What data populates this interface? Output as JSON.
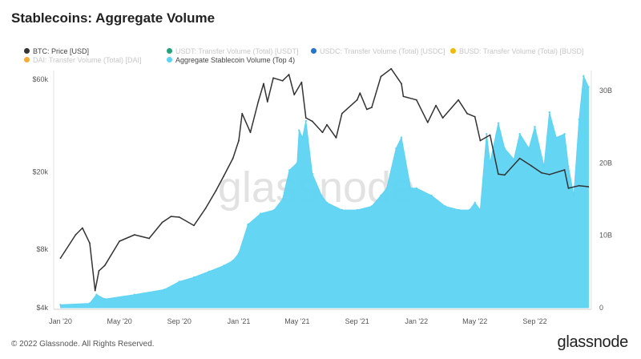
{
  "title": "Stablecoins: Aggregate Volume",
  "footer": "© 2022 Glassnode. All Rights Reserved.",
  "brand": "glassnode",
  "watermark": "glassnode",
  "colors": {
    "btc": "#333333",
    "usdt": "#26a17b",
    "usdc": "#2775ca",
    "busd": "#f0b90b",
    "dai": "#f5ac37",
    "aggregate": "#5dd3f3"
  },
  "legend": [
    {
      "name": "BTC: Price [USD]",
      "color": "#333333",
      "active": true
    },
    {
      "name": "USDT: Transfer Volume (Total) [USDT]",
      "color": "#26a17b",
      "active": false
    },
    {
      "name": "USDC: Transfer Volume (Total) [USDC]",
      "color": "#2775ca",
      "active": false
    },
    {
      "name": "BUSD: Transfer Volume (Total) [BUSD]",
      "color": "#f0b90b",
      "active": false
    },
    {
      "name": "DAI: Transfer Volume (Total) [DAI]",
      "color": "#f5ac37",
      "active": false
    },
    {
      "name": "Aggregate Stablecoin Volume (Top 4)",
      "color": "#5dd3f3",
      "active": true
    }
  ],
  "chart_data": {
    "type": "area",
    "title": "Stablecoins: Aggregate Volume",
    "x_ticks": [
      "Jan '20",
      "May '20",
      "Sep '20",
      "Jan '21",
      "May '21",
      "Sep '21",
      "Jan '22",
      "May '22",
      "Sep '22"
    ],
    "y_left_ticks": [
      "$4k",
      "$8k",
      "$20k",
      "$60k"
    ],
    "y_left_scale": "log",
    "y_left_range": [
      4000,
      60000
    ],
    "y_right_ticks": [
      "0",
      "10B",
      "20B",
      "30B"
    ],
    "y_right_range": [
      0,
      32000000000
    ],
    "grid": false,
    "legend_position": "top",
    "series": [
      {
        "name": "BTC: Price [USD]",
        "type": "line",
        "axis": "left",
        "x": [
          "2020-01-01",
          "2020-02-01",
          "2020-02-15",
          "2020-03-01",
          "2020-03-12",
          "2020-03-20",
          "2020-04-01",
          "2020-05-01",
          "2020-06-01",
          "2020-07-01",
          "2020-07-28",
          "2020-08-15",
          "2020-09-01",
          "2020-10-01",
          "2020-10-25",
          "2020-11-15",
          "2020-12-01",
          "2020-12-20",
          "2021-01-01",
          "2021-01-08",
          "2021-01-25",
          "2021-02-10",
          "2021-02-21",
          "2021-03-01",
          "2021-03-13",
          "2021-04-01",
          "2021-04-14",
          "2021-04-25",
          "2021-05-10",
          "2021-05-19",
          "2021-06-01",
          "2021-06-22",
          "2021-07-01",
          "2021-07-20",
          "2021-08-01",
          "2021-09-01",
          "2021-09-07",
          "2021-09-21",
          "2021-10-01",
          "2021-10-20",
          "2021-11-10",
          "2021-12-01",
          "2021-12-05",
          "2022-01-01",
          "2022-01-24",
          "2022-02-10",
          "2022-02-24",
          "2022-03-28",
          "2022-04-15",
          "2022-05-01",
          "2022-05-12",
          "2022-06-01",
          "2022-06-18",
          "2022-07-01",
          "2022-08-01",
          "2022-08-25",
          "2022-09-15",
          "2022-10-01",
          "2022-11-01",
          "2022-11-09",
          "2022-12-01",
          "2022-12-20"
        ],
        "values": [
          7200,
          9500,
          10300,
          8600,
          4900,
          6200,
          6600,
          8800,
          9500,
          9100,
          11000,
          11800,
          11700,
          10600,
          13000,
          16000,
          19000,
          23500,
          29000,
          40000,
          32000,
          46000,
          57000,
          46000,
          61000,
          59000,
          63500,
          50000,
          58000,
          38000,
          36500,
          32000,
          35000,
          30000,
          40000,
          47000,
          51000,
          42000,
          43000,
          62000,
          68000,
          57000,
          49000,
          47000,
          36000,
          44000,
          38000,
          47000,
          40000,
          38500,
          29000,
          31000,
          19500,
          19300,
          23500,
          21500,
          19800,
          19400,
          20500,
          16500,
          17000,
          16800
        ]
      },
      {
        "name": "Aggregate Stablecoin Volume (Top 4)",
        "type": "area",
        "axis": "right",
        "x": [
          "2020-01-01",
          "2020-03-01",
          "2020-03-15",
          "2020-04-01",
          "2020-06-01",
          "2020-08-01",
          "2020-09-01",
          "2020-10-01",
          "2020-11-01",
          "2020-12-01",
          "2020-12-20",
          "2021-01-01",
          "2021-01-20",
          "2021-02-15",
          "2021-03-15",
          "2021-04-01",
          "2021-04-15",
          "2021-05-01",
          "2021-05-05",
          "2021-05-12",
          "2021-05-19",
          "2021-06-01",
          "2021-06-20",
          "2021-07-01",
          "2021-08-01",
          "2021-09-01",
          "2021-10-01",
          "2021-10-20",
          "2021-11-01",
          "2021-11-20",
          "2021-12-01",
          "2021-12-20",
          "2022-01-01",
          "2022-02-01",
          "2022-03-01",
          "2022-03-30",
          "2022-04-20",
          "2022-05-01",
          "2022-05-12",
          "2022-05-25",
          "2022-06-01",
          "2022-06-18",
          "2022-07-01",
          "2022-07-20",
          "2022-08-01",
          "2022-08-20",
          "2022-09-01",
          "2022-09-20",
          "2022-10-01",
          "2022-10-15",
          "2022-11-01",
          "2022-11-09",
          "2022-11-20",
          "2022-12-01",
          "2022-12-10",
          "2022-12-20"
        ],
        "values": [
          400000000,
          600000000,
          1800000000,
          1200000000,
          1800000000,
          2500000000,
          3600000000,
          4200000000,
          5000000000,
          5800000000,
          6500000000,
          7500000000,
          11500000000,
          13000000000,
          13500000000,
          15000000000,
          19000000000,
          20000000000,
          24500000000,
          23500000000,
          25800000000,
          18500000000,
          15500000000,
          14500000000,
          13500000000,
          13500000000,
          14000000000,
          15500000000,
          16500000000,
          22000000000,
          23500000000,
          16500000000,
          16500000000,
          15500000000,
          14000000000,
          13500000000,
          13500000000,
          14500000000,
          13500000000,
          24000000000,
          20000000000,
          25500000000,
          22000000000,
          20500000000,
          24000000000,
          22000000000,
          25000000000,
          19500000000,
          27000000000,
          23500000000,
          24000000000,
          19500000000,
          15500000000,
          26000000000,
          32000000000,
          30500000000
        ]
      }
    ]
  }
}
